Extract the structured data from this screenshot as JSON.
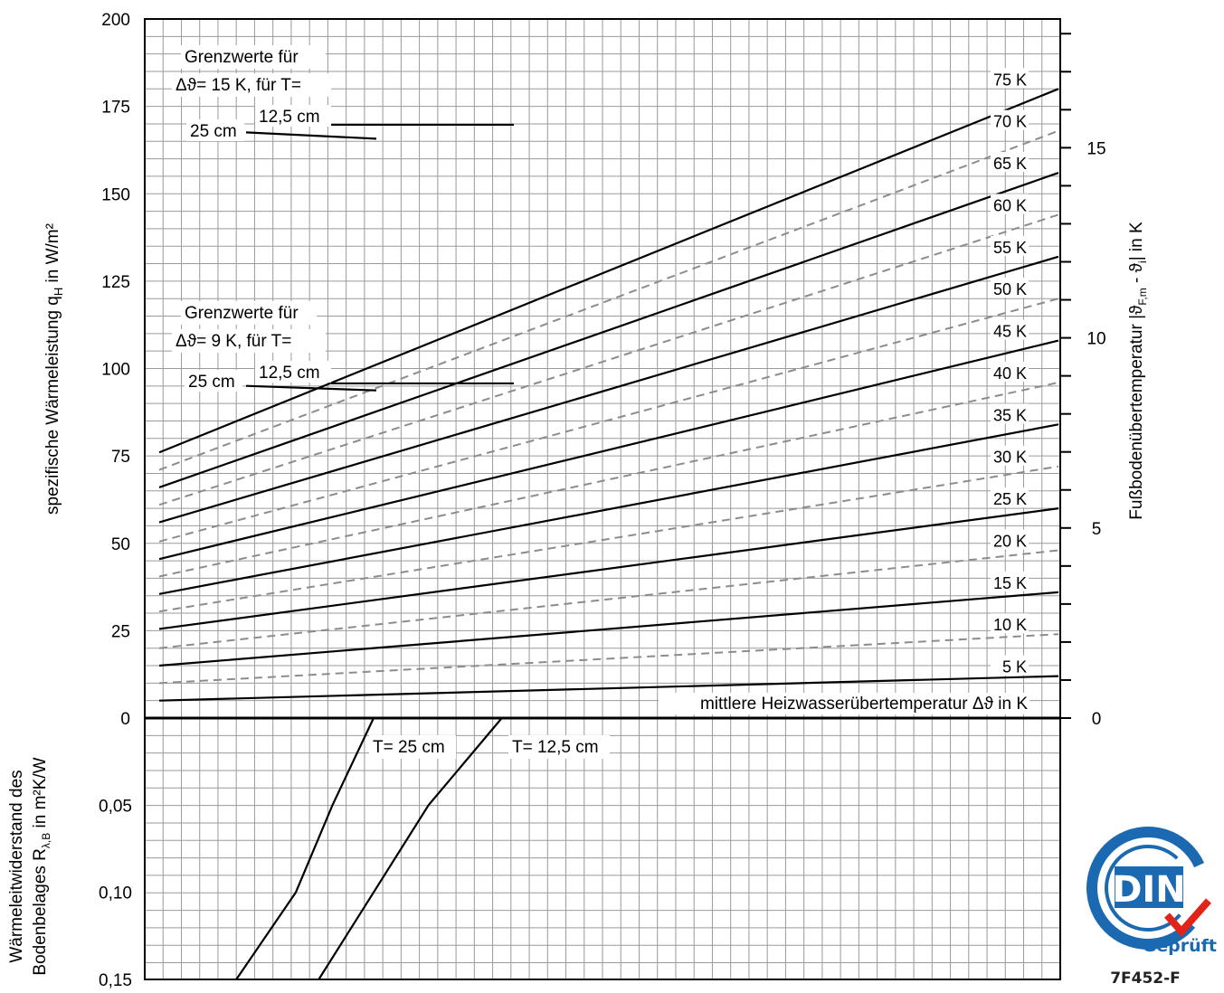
{
  "chart_data": {
    "type": "line",
    "title": "",
    "upper": {
      "ylabel": "spezifische Wärmeleistung q",
      "ylabel_sub": "H",
      "ylabel_unit": " in W/m²",
      "ylim": [
        0,
        200
      ],
      "y_ticks": [
        "0",
        "25",
        "50",
        "75",
        "100",
        "125",
        "150",
        "175",
        "200"
      ],
      "right_ylabel": "Fußbodenübertemperatur |ϑ",
      "right_ylabel_sub1": "F,m",
      "right_ylabel_mid": " - ϑ",
      "right_ylabel_sub2": "i",
      "right_ylabel_end": "| in K",
      "right_ticks": [
        "0",
        "5",
        "10",
        "15"
      ],
      "series_caption": "mittlere Heizwasserübertemperatur Δϑ in K",
      "series": [
        {
          "name": "5 K",
          "style": "solid",
          "values": [
            5,
            12
          ]
        },
        {
          "name": "10 K",
          "style": "dashed",
          "values": [
            10,
            24
          ]
        },
        {
          "name": "15 K",
          "style": "solid",
          "values": [
            15,
            36
          ]
        },
        {
          "name": "20 K",
          "style": "dashed",
          "values": [
            20,
            48
          ]
        },
        {
          "name": "25 K",
          "style": "solid",
          "values": [
            25.5,
            60
          ]
        },
        {
          "name": "30 K",
          "style": "dashed",
          "values": [
            30.5,
            72
          ]
        },
        {
          "name": "35 K",
          "style": "solid",
          "values": [
            35.5,
            84
          ]
        },
        {
          "name": "40 K",
          "style": "dashed",
          "values": [
            40.5,
            96
          ]
        },
        {
          "name": "45 K",
          "style": "solid",
          "values": [
            45.5,
            108
          ]
        },
        {
          "name": "50 K",
          "style": "dashed",
          "values": [
            50.5,
            120
          ]
        },
        {
          "name": "55 K",
          "style": "solid",
          "values": [
            56,
            132
          ]
        },
        {
          "name": "60 K",
          "style": "dashed",
          "values": [
            61,
            144
          ]
        },
        {
          "name": "65 K",
          "style": "solid",
          "values": [
            66,
            156
          ]
        },
        {
          "name": "70 K",
          "style": "dashed",
          "values": [
            71,
            168
          ]
        },
        {
          "name": "75 K",
          "style": "solid",
          "values": [
            76,
            180
          ]
        }
      ]
    },
    "lower": {
      "ylabel_line1": "Wärmeleitwiderstand des",
      "ylabel_line2": "Bodenbelages R",
      "ylabel_sub": "λ,B",
      "ylabel_unit": " in m²K/W",
      "ylim": [
        0,
        0.15
      ],
      "y_ticks": [
        "0,05",
        "0,10",
        "0,15"
      ],
      "curves": [
        {
          "name": "T= 25 cm",
          "points": [
            [
              0.25,
              0
            ],
            [
              0.205,
              0.05
            ],
            [
              0.165,
              0.1
            ],
            [
              0.1,
              0.15
            ]
          ]
        },
        {
          "name": "T= 12,5 cm",
          "points": [
            [
              0.39,
              0
            ],
            [
              0.31,
              0.05
            ],
            [
              0.25,
              0.1
            ],
            [
              0.19,
              0.15
            ]
          ]
        }
      ]
    },
    "annotations": {
      "limit_15": {
        "line1": "Grenzwerte für",
        "line2": "Δϑ= 15 K, für T=",
        "t25": "25 cm",
        "t125": "12,5 cm",
        "value_25": 166,
        "value_125": 170
      },
      "limit_9": {
        "line1": "Grenzwerte für",
        "line2": "Δϑ= 9 K, für T=",
        "t25": "25 cm",
        "t125": "12,5 cm",
        "value_25": 94,
        "value_125": 96
      }
    },
    "grid": true
  },
  "logo": {
    "brand": "DIN",
    "tag": "Geprüft",
    "code": "7F452-F",
    "colors": {
      "blue": "#1b6ab1",
      "red": "#e2231a"
    }
  }
}
